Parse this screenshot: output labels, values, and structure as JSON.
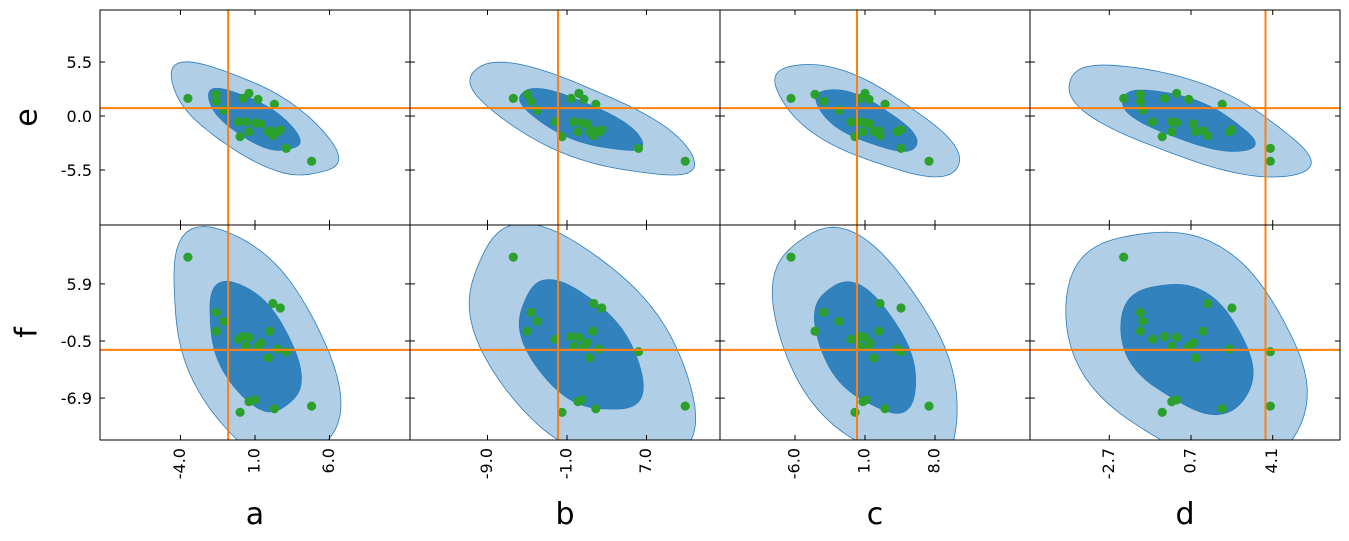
{
  "chart_data": {
    "type": "scatter",
    "kind": "corner-plot-grid",
    "x_parameters": [
      {
        "name": "a",
        "ticks": [
          -4.0,
          1.0,
          6.0
        ],
        "tick_labels": [
          "-4.0",
          "1.0",
          "6.0"
        ],
        "range": [
          -9.4,
          11.4
        ],
        "truth": -0.8
      },
      {
        "name": "b",
        "ticks": [
          -9.0,
          -1.0,
          7.0
        ],
        "tick_labels": [
          "-9.0",
          "-1.0",
          "7.0"
        ],
        "range": [
          -16.8,
          14.4
        ],
        "truth": -1.9
      },
      {
        "name": "c",
        "ticks": [
          -6.0,
          1.0,
          8.0
        ],
        "tick_labels": [
          "-6.0",
          "1.0",
          "8.0"
        ],
        "range": [
          -13.5,
          17.5
        ],
        "truth": 0.2
      },
      {
        "name": "d",
        "ticks": [
          -2.7,
          0.7,
          4.1
        ],
        "tick_labels": [
          "-2.7",
          "0.7",
          "4.1"
        ],
        "range": [
          -6.0,
          6.9
        ],
        "truth": 3.8
      }
    ],
    "y_parameters": [
      {
        "name": "e",
        "ticks": [
          5.5,
          0.0,
          -5.5
        ],
        "tick_labels": [
          "5.5",
          "0.0",
          "-5.5"
        ],
        "range": [
          -11.1,
          10.8
        ],
        "truth": 0.8
      },
      {
        "name": "f",
        "ticks": [
          5.9,
          -0.5,
          -6.9
        ],
        "tick_labels": [
          "5.9",
          "-0.5",
          "-6.9"
        ],
        "range": [
          -11.6,
          12.5
        ],
        "truth": -1.5
      }
    ],
    "samples": {
      "a": [
        -3.5,
        -1.6,
        -1.6,
        -1.1,
        -0.1,
        0.0,
        0.2,
        0.4,
        0.6,
        0.6,
        1.0,
        1.2,
        1.4,
        1.9,
        2.0,
        2.2,
        2.3,
        2.5,
        2.7,
        3.1,
        4.8
      ],
      "b": [
        -6.4,
        -5.0,
        -4.6,
        -4.0,
        -2.2,
        -1.5,
        -0.6,
        -0.3,
        0.1,
        0.2,
        0.5,
        0.7,
        1.0,
        1.3,
        1.6,
        1.7,
        1.9,
        2.2,
        2.5,
        6.2,
        10.9
      ],
      "c": [
        -6.4,
        -4.0,
        -3.1,
        -1.6,
        -0.4,
        0.0,
        0.5,
        0.5,
        0.8,
        1.0,
        1.1,
        1.4,
        1.5,
        1.9,
        2.4,
        2.5,
        3.0,
        4.2,
        4.6,
        4.6,
        7.4
      ],
      "d": [
        -2.1,
        -1.4,
        -1.4,
        -1.3,
        -0.9,
        -0.5,
        -0.4,
        -0.1,
        -0.1,
        0.1,
        0.1,
        0.6,
        0.8,
        0.9,
        1.2,
        1.4,
        2.0,
        2.3,
        2.4,
        4.0,
        4.0
      ],
      "e": [
        1.8,
        2.2,
        1.5,
        0.6,
        -0.6,
        -2.1,
        1.8,
        -0.6,
        -1.6,
        2.3,
        -0.7,
        1.7,
        -0.8,
        -1.6,
        -1.5,
        -2.0,
        1.2,
        -1.6,
        -1.4,
        -3.3,
        -4.6
      ],
      "f": [
        8.9,
        0.6,
        2.7,
        1.7,
        -0.3,
        -8.5,
        0.0,
        -1.1,
        -7.3,
        -0.1,
        -7.1,
        -1.1,
        -0.7,
        -2.4,
        0.6,
        3.7,
        -8.1,
        -1.4,
        3.2,
        -1.7,
        -7.8
      ]
    },
    "contours": {
      "fill_inner": "#3182bd",
      "fill_outer": "#b0cfe6",
      "edge": "#2b7bba",
      "levels": [
        "inner",
        "outer"
      ]
    },
    "colors": {
      "points": "#2ca02c",
      "truth_lines": "#ff7f0e",
      "frame": "#000000"
    },
    "grid": false,
    "legend": "none"
  }
}
